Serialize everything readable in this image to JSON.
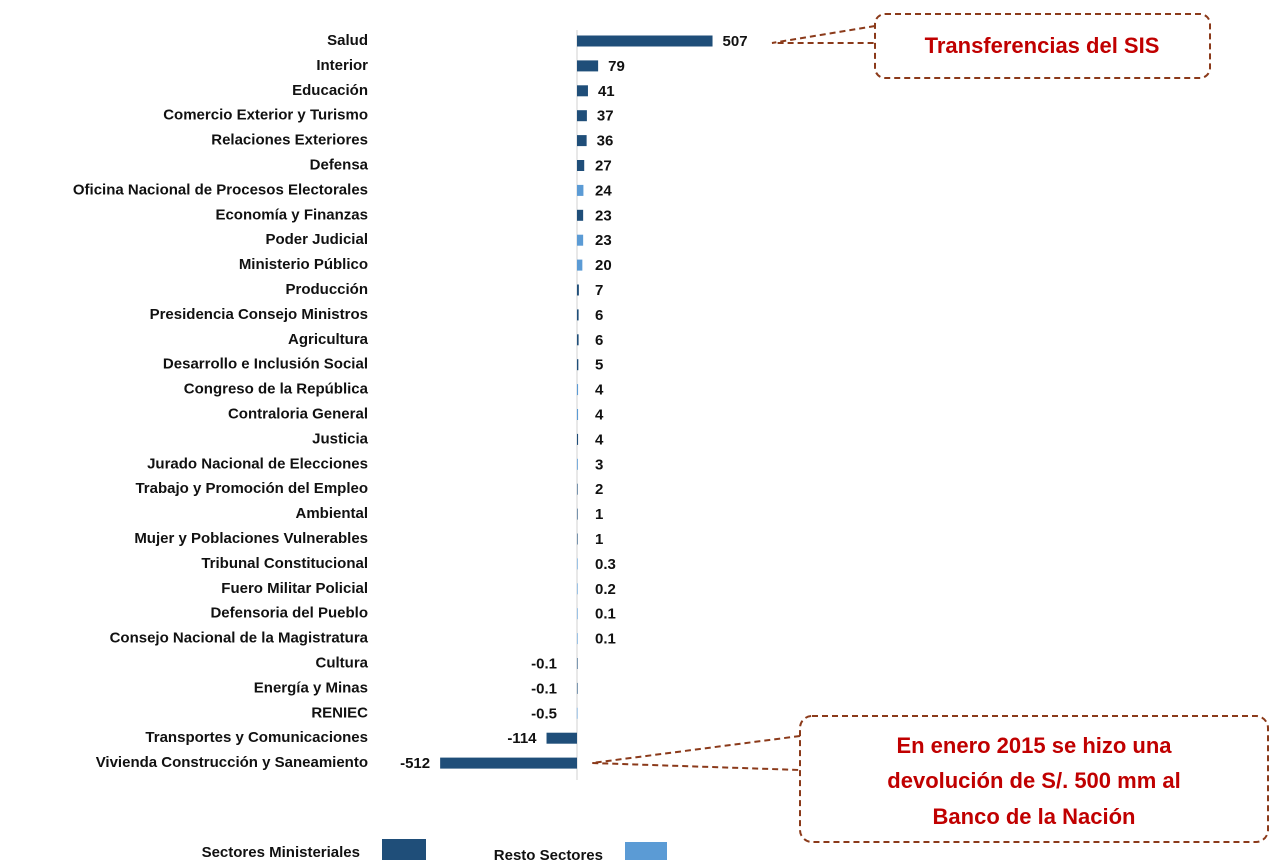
{
  "chart_data": {
    "type": "barh",
    "categories": [
      "Salud",
      "Interior",
      "Educación",
      "Comercio Exterior y Turismo",
      "Relaciones Exteriores",
      "Defensa",
      "Oficina Nacional de Procesos Electorales",
      "Economía y Finanzas",
      "Poder Judicial",
      "Ministerio Público",
      "Producción",
      "Presidencia Consejo Ministros",
      "Agricultura",
      "Desarrollo e Inclusión Social",
      "Congreso de la República",
      "Contraloria General",
      "Justicia",
      "Jurado Nacional de Elecciones",
      "Trabajo y Promoción del Empleo",
      "Ambiental",
      "Mujer y Poblaciones Vulnerables",
      "Tribunal Constitucional",
      "Fuero Militar Policial",
      "Defensoria del Pueblo",
      "Consejo Nacional de la Magistratura",
      "Cultura",
      "Energía y Minas",
      "RENIEC",
      "Transportes y Comunicaciones",
      "Vivienda Construcción y Saneamiento"
    ],
    "series": [
      {
        "name": "Sectores Ministeriales",
        "color": "#1f4e79",
        "values": [
          507,
          79,
          41,
          37,
          36,
          27,
          null,
          23,
          null,
          null,
          7,
          6,
          6,
          5,
          null,
          null,
          4,
          null,
          2,
          1,
          1,
          null,
          null,
          null,
          null,
          -0.1,
          -0.1,
          null,
          -114,
          -512
        ]
      },
      {
        "name": "Resto Sectores",
        "color": "#5b9bd5",
        "values": [
          null,
          null,
          null,
          null,
          null,
          null,
          24,
          null,
          23,
          20,
          null,
          null,
          null,
          null,
          4,
          4,
          null,
          3,
          null,
          null,
          null,
          0.3,
          0.2,
          0.1,
          0.1,
          null,
          null,
          -0.5,
          null,
          null
        ]
      }
    ],
    "xlim": [
      -520,
      520
    ],
    "annotations": [
      {
        "lines": [
          "Transferencias del SIS"
        ]
      },
      {
        "lines": [
          "En enero 2015 se hizo una",
          "devolución de S/. 500 mm al",
          "Banco de la Nación"
        ]
      }
    ]
  }
}
